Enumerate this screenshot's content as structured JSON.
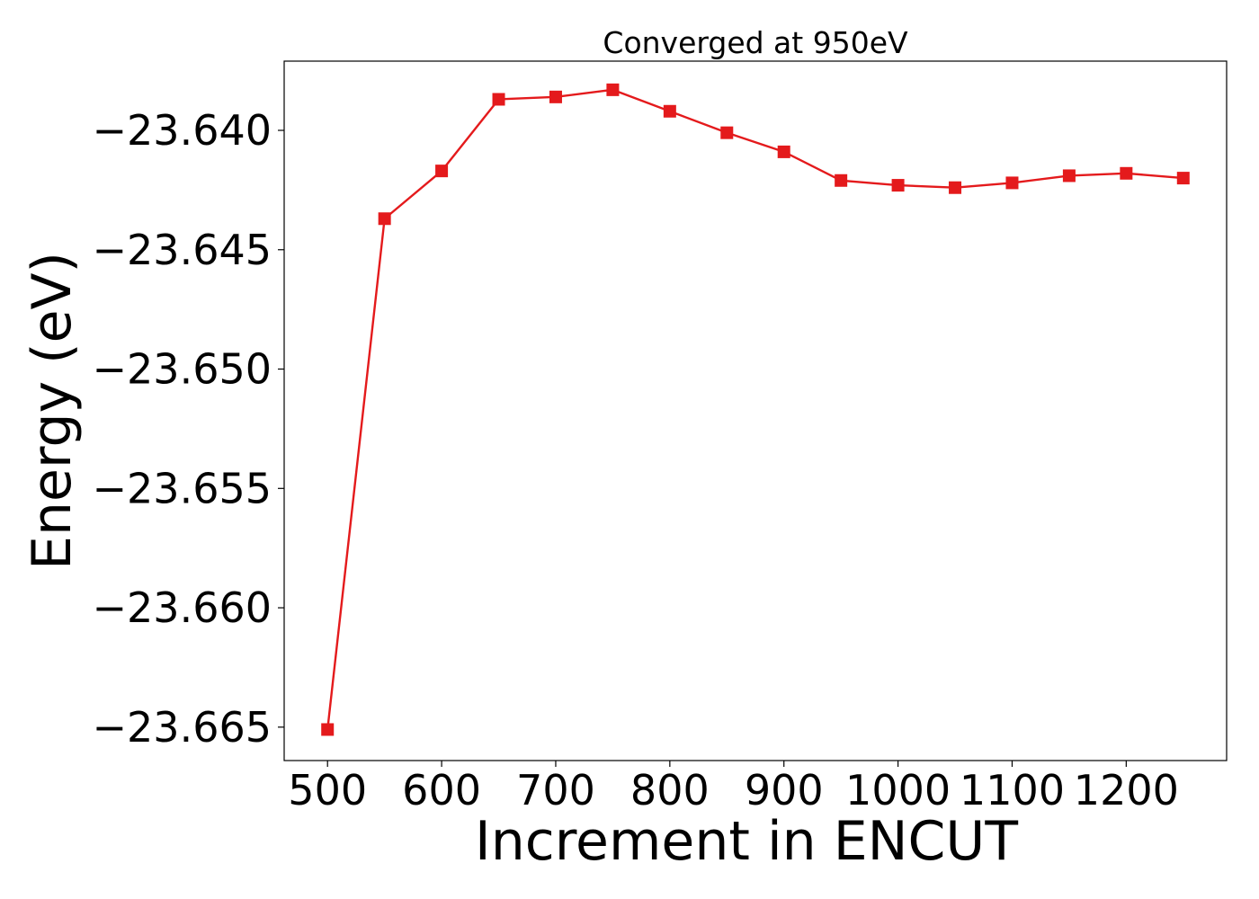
{
  "chart_data": {
    "type": "line",
    "title": "Converged at 950eV",
    "xlabel": "Increment in ENCUT",
    "ylabel": "Energy (eV)",
    "x": [
      500,
      550,
      600,
      650,
      700,
      750,
      800,
      850,
      900,
      950,
      1000,
      1050,
      1100,
      1150,
      1200,
      1250
    ],
    "series": [
      {
        "color": "#e41a1c",
        "marker": "square",
        "values": [
          -23.6651,
          -23.6437,
          -23.6417,
          -23.6387,
          -23.6386,
          -23.6383,
          -23.6392,
          -23.6401,
          -23.6409,
          -23.6421,
          -23.6423,
          -23.6424,
          -23.6422,
          -23.6419,
          -23.6418,
          -23.642
        ]
      }
    ],
    "xlim": [
      462,
      1288
    ],
    "ylim": [
      -23.6664,
      -23.6371
    ],
    "xticks": [
      500,
      600,
      700,
      800,
      900,
      1000,
      1100,
      1200
    ],
    "xtick_labels": [
      "500",
      "600",
      "700",
      "800",
      "900",
      "1000",
      "1100",
      "1200"
    ],
    "yticks": [
      -23.64,
      -23.645,
      -23.65,
      -23.655,
      -23.66,
      -23.665
    ],
    "ytick_labels": [
      "−23.640",
      "−23.645",
      "−23.650",
      "−23.655",
      "−23.660",
      "−23.665"
    ],
    "grid": false,
    "legend": "none"
  }
}
